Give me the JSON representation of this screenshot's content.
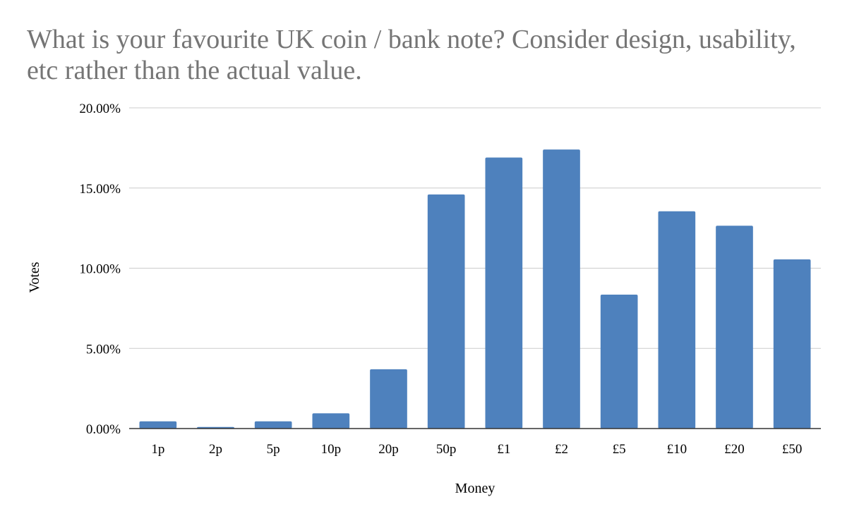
{
  "chart_data": {
    "type": "bar",
    "title": "What is your favourite UK coin / bank note? Consider design, usability, etc rather than the actual value.",
    "xlabel": "Money",
    "ylabel": "Votes",
    "categories": [
      "1p",
      "2p",
      "5p",
      "10p",
      "20p",
      "50p",
      "£1",
      "£2",
      "£5",
      "£10",
      "£20",
      "£50"
    ],
    "values": [
      0.45,
      0.1,
      0.45,
      0.95,
      3.7,
      14.6,
      16.9,
      17.4,
      8.35,
      13.55,
      12.65,
      10.55
    ],
    "ylim": [
      0,
      20
    ],
    "yticks": [
      0,
      5,
      10,
      15,
      20
    ],
    "ytick_labels": [
      "0.00%",
      "5.00%",
      "10.00%",
      "15.00%",
      "20.00%"
    ],
    "bar_color": "#4e81bd",
    "grid": true,
    "legend": "none"
  }
}
